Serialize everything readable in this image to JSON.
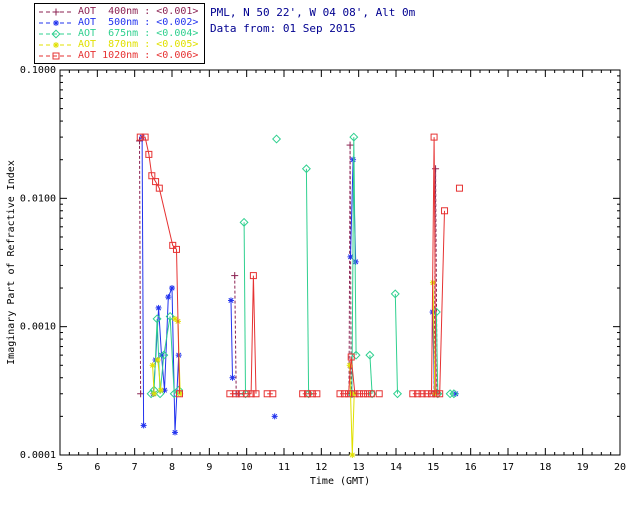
{
  "header": {
    "line1": "PML, N 50 22', W 04 08', Alt 0m",
    "line2": "Data from: 01 Sep 2015"
  },
  "chart_data": {
    "type": "line",
    "title": "",
    "xlabel": "Time (GMT)",
    "ylabel": "Imaginary Part of Refractive Index",
    "xscale": "linear",
    "yscale": "log",
    "xlim": [
      5,
      20
    ],
    "ylim": [
      0.0001,
      0.1
    ],
    "xticks": [
      5,
      6,
      7,
      8,
      9,
      10,
      11,
      12,
      13,
      14,
      15,
      16,
      17,
      18,
      19,
      20
    ],
    "yticks": [
      0.0001,
      0.001,
      0.01,
      0.1
    ],
    "ytick_labels": [
      "0.0001",
      "0.0010",
      "0.0100",
      "0.1000"
    ],
    "grid": false,
    "legend_position": "top-left",
    "series": [
      {
        "name": "AOT 400nm",
        "legend_label": "AOT  400nm : <0.001>",
        "color": "#8b2252",
        "marker": "plus",
        "dash": "3,2",
        "segments": [
          [
            [
              7.13,
              0.028
            ],
            [
              7.16,
              0.0003
            ]
          ],
          [
            [
              9.68,
              0.0025
            ],
            [
              9.72,
              0.0003
            ],
            [
              9.8,
              0.0003
            ]
          ],
          [
            [
              12.74,
              0.0003
            ],
            [
              12.77,
              0.026
            ],
            [
              12.8,
              0.0003
            ]
          ],
          [
            [
              15.02,
              0.0003
            ],
            [
              15.06,
              0.017
            ],
            [
              15.1,
              0.0003
            ]
          ]
        ]
      },
      {
        "name": "AOT 500nm",
        "legend_label": "AOT  500nm : <0.002>",
        "color": "#2233ee",
        "marker": "asterisk",
        "dash": "",
        "segments": [
          [
            [
              7.2,
              0.03
            ],
            [
              7.24,
              0.00017
            ]
          ],
          [
            [
              7.5,
              0.0003
            ],
            [
              7.56,
              0.00055
            ],
            [
              7.64,
              0.0014
            ],
            [
              7.72,
              0.0006
            ],
            [
              7.8,
              0.00032
            ],
            [
              7.9,
              0.0017
            ],
            [
              8.0,
              0.002
            ],
            [
              8.08,
              0.00015
            ],
            [
              8.18,
              0.0006
            ]
          ],
          [
            [
              9.58,
              0.0016
            ],
            [
              9.62,
              0.0004
            ]
          ],
          [
            [
              10.75,
              0.0002
            ]
          ],
          [
            [
              12.78,
              0.0035
            ],
            [
              12.85,
              0.02
            ],
            [
              12.92,
              0.0032
            ]
          ],
          [
            [
              14.98,
              0.0013
            ],
            [
              15.03,
              0.0003
            ]
          ],
          [
            [
              15.6,
              0.0003
            ]
          ]
        ]
      },
      {
        "name": "AOT 675nm",
        "legend_label": "AOT  675nm : <0.004>",
        "color": "#2fd08f",
        "marker": "diamond",
        "dash": "",
        "segments": [
          [
            [
              7.44,
              0.0003
            ],
            [
              7.52,
              0.00032
            ],
            [
              7.6,
              0.00115
            ],
            [
              7.68,
              0.0003
            ],
            [
              7.78,
              0.0006
            ],
            [
              7.95,
              0.0012
            ],
            [
              8.06,
              0.0003
            ],
            [
              8.18,
              0.00032
            ]
          ],
          [
            [
              9.93,
              0.0065
            ],
            [
              9.97,
              0.0003
            ]
          ],
          [
            [
              10.8,
              0.029
            ]
          ],
          [
            [
              11.6,
              0.017
            ],
            [
              11.66,
              0.0003
            ]
          ],
          [
            [
              12.82,
              0.0003
            ],
            [
              12.87,
              0.03
            ],
            [
              12.93,
              0.0006
            ]
          ],
          [
            [
              13.3,
              0.0006
            ],
            [
              13.36,
              0.0003
            ]
          ],
          [
            [
              13.98,
              0.0018
            ],
            [
              14.04,
              0.0003
            ]
          ],
          [
            [
              15.08,
              0.0013
            ],
            [
              15.12,
              0.0003
            ]
          ],
          [
            [
              15.45,
              0.0003
            ],
            [
              15.55,
              0.0003
            ]
          ]
        ]
      },
      {
        "name": "AOT 870nm",
        "legend_label": "AOT  870nm : <0.005>",
        "color": "#e0e000",
        "marker": "asterisk",
        "dash": "",
        "segments": [
          [
            [
              7.48,
              0.0005
            ],
            [
              7.52,
              0.0003
            ]
          ],
          [
            [
              7.62,
              0.00055
            ],
            [
              7.7,
              0.00032
            ]
          ],
          [
            [
              8.08,
              0.00115
            ],
            [
              8.16,
              0.0011
            ],
            [
              8.22,
              0.0003
            ]
          ],
          [
            [
              12.76,
              0.0005
            ],
            [
              12.83,
              0.0001
            ],
            [
              12.88,
              0.0003
            ]
          ],
          [
            [
              14.99,
              0.0022
            ],
            [
              15.04,
              0.0003
            ]
          ]
        ]
      },
      {
        "name": "AOT 1020nm",
        "legend_label": "AOT 1020nm : <0.006>",
        "color": "#e63232",
        "marker": "square",
        "dash": "",
        "segments": [
          [
            [
              7.15,
              0.03
            ],
            [
              7.28,
              0.03
            ],
            [
              7.38,
              0.022
            ],
            [
              7.46,
              0.015
            ],
            [
              7.56,
              0.0135
            ],
            [
              7.66,
              0.012
            ],
            [
              8.02,
              0.0043
            ],
            [
              8.12,
              0.004
            ],
            [
              8.2,
              0.0003
            ]
          ],
          [
            [
              9.55,
              0.0003
            ],
            [
              9.7,
              0.0003
            ],
            [
              9.85,
              0.0003
            ],
            [
              10.0,
              0.0003
            ],
            [
              10.12,
              0.0003
            ],
            [
              10.18,
              0.0025
            ],
            [
              10.25,
              0.0003
            ]
          ],
          [
            [
              10.55,
              0.0003
            ],
            [
              10.7,
              0.0003
            ]
          ],
          [
            [
              11.5,
              0.0003
            ],
            [
              11.63,
              0.0003
            ],
            [
              11.76,
              0.0003
            ],
            [
              11.88,
              0.0003
            ]
          ],
          [
            [
              12.5,
              0.0003
            ],
            [
              12.62,
              0.0003
            ],
            [
              12.73,
              0.0003
            ],
            [
              12.8,
              0.00058
            ],
            [
              12.9,
              0.0003
            ],
            [
              13.02,
              0.0003
            ],
            [
              13.13,
              0.0003
            ],
            [
              13.24,
              0.0003
            ],
            [
              13.34,
              0.0003
            ]
          ],
          [
            [
              13.55,
              0.0003
            ]
          ],
          [
            [
              14.45,
              0.0003
            ],
            [
              14.58,
              0.0003
            ],
            [
              14.7,
              0.0003
            ],
            [
              14.83,
              0.0003
            ],
            [
              14.95,
              0.0003
            ],
            [
              15.02,
              0.03
            ],
            [
              15.07,
              0.0003
            ],
            [
              15.17,
              0.0003
            ],
            [
              15.3,
              0.008
            ]
          ],
          [
            [
              15.7,
              0.012
            ]
          ]
        ]
      }
    ]
  }
}
